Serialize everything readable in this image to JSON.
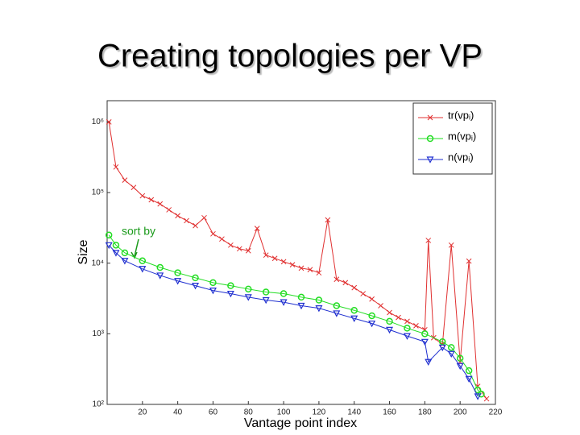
{
  "title": "Creating topologies per VP",
  "chart_data": {
    "type": "line",
    "ylabel": "Size",
    "xlabel": "Vantage point index",
    "annotation": "sort by",
    "log_y": true,
    "legend": "upper right",
    "xlim": [
      0,
      220
    ],
    "ylim": [
      100,
      2000000
    ],
    "xticks": [
      20,
      40,
      60,
      80,
      100,
      120,
      140,
      160,
      180,
      200,
      220
    ],
    "yticks": [
      {
        "value": 100,
        "label": "10²"
      },
      {
        "value": 1000,
        "label": "10³"
      },
      {
        "value": 10000,
        "label": "10⁴"
      },
      {
        "value": 100000,
        "label": "10⁵"
      },
      {
        "value": 1000000,
        "label": "10⁶"
      }
    ],
    "series": [
      {
        "name": "tr(vpᵢ)",
        "color": "#e03030",
        "marker": "x",
        "x": [
          1,
          5,
          10,
          15,
          20,
          25,
          30,
          35,
          40,
          45,
          50,
          55,
          60,
          65,
          70,
          75,
          80,
          85,
          90,
          95,
          100,
          105,
          110,
          115,
          120,
          125,
          130,
          135,
          140,
          145,
          150,
          155,
          160,
          165,
          170,
          175,
          180,
          182,
          185,
          190,
          195,
          200,
          205,
          210,
          215
        ],
        "values": [
          1000000,
          230000,
          150000,
          118000,
          90000,
          79000,
          69000,
          57000,
          47000,
          40000,
          34000,
          44000,
          26000,
          22000,
          18000,
          16000,
          15000,
          31000,
          13000,
          11700,
          10500,
          9500,
          8500,
          8100,
          7300,
          41000,
          5900,
          5300,
          4500,
          3700,
          3100,
          2500,
          2000,
          1700,
          1500,
          1300,
          1140,
          21000,
          880,
          710,
          18000,
          400,
          10700,
          180,
          120
        ]
      },
      {
        "name": "m(vpᵢ)",
        "color": "#22dd22",
        "marker": "o",
        "x": [
          1,
          5,
          10,
          20,
          30,
          40,
          50,
          60,
          70,
          80,
          90,
          100,
          110,
          120,
          130,
          140,
          150,
          160,
          170,
          180,
          190,
          195,
          200,
          205,
          210,
          212
        ],
        "values": [
          25000,
          18000,
          14000,
          10800,
          8700,
          7300,
          6200,
          5300,
          4800,
          4300,
          3900,
          3700,
          3300,
          3000,
          2500,
          2150,
          1800,
          1500,
          1200,
          1000,
          770,
          640,
          450,
          300,
          160,
          140
        ]
      },
      {
        "name": "n(vpᵢ)",
        "color": "#2030d0",
        "marker": "v",
        "x": [
          1,
          5,
          10,
          20,
          30,
          40,
          50,
          60,
          70,
          80,
          90,
          100,
          110,
          120,
          130,
          140,
          150,
          160,
          170,
          180,
          182,
          190,
          195,
          200,
          205,
          210
        ],
        "values": [
          18000,
          14000,
          10800,
          8300,
          6700,
          5600,
          4800,
          4100,
          3700,
          3300,
          3000,
          2800,
          2500,
          2300,
          1950,
          1650,
          1400,
          1140,
          930,
          770,
          400,
          640,
          520,
          350,
          230,
          130
        ]
      }
    ]
  }
}
